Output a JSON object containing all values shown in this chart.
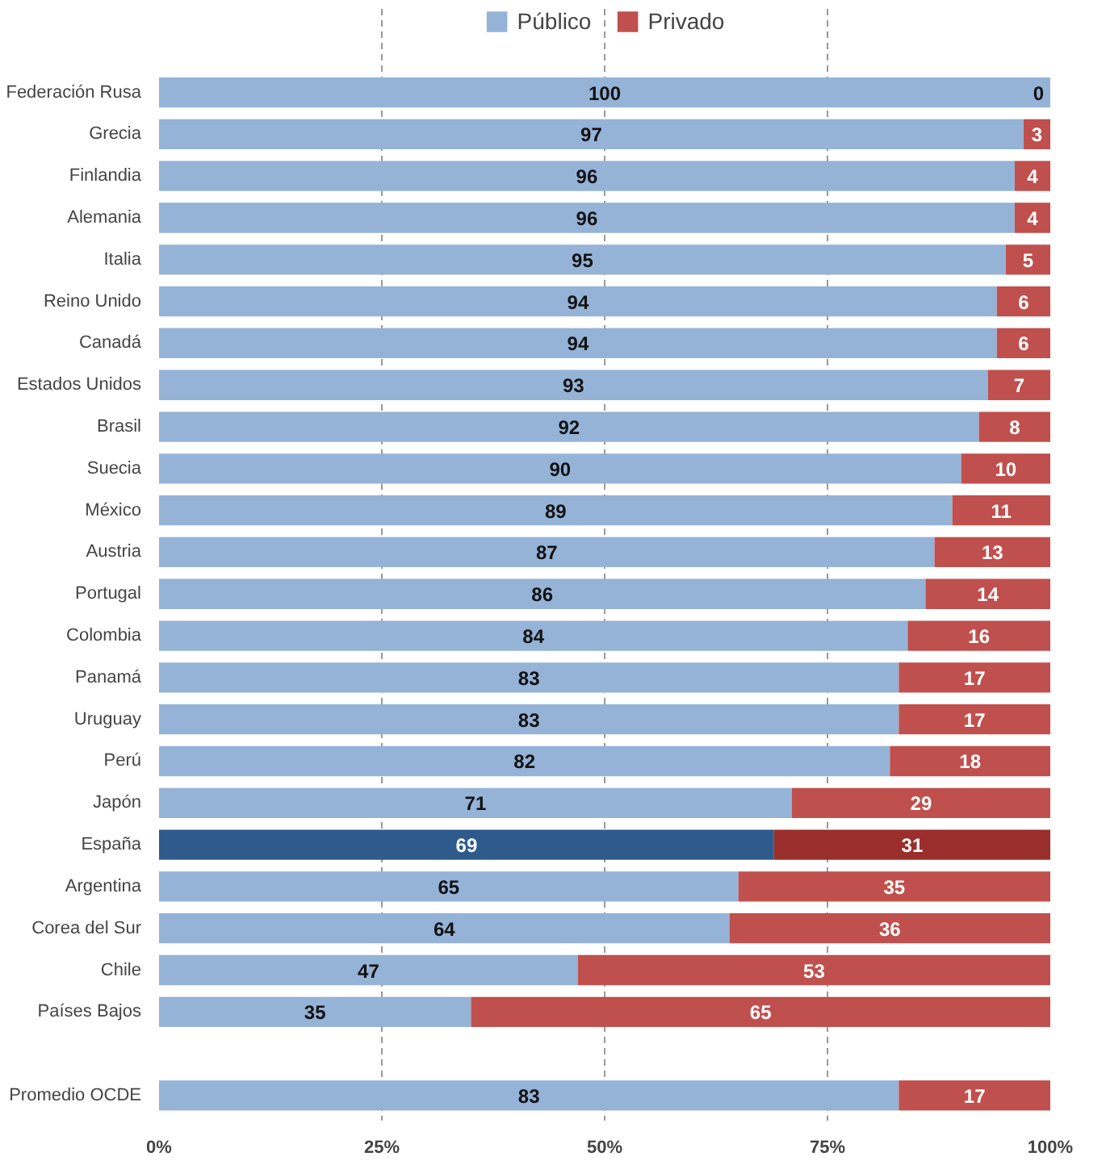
{
  "chart_data": {
    "type": "bar",
    "orientation": "horizontal",
    "stacked": true,
    "categories": [
      "Federación Rusa",
      "Grecia",
      "Finlandia",
      "Alemania",
      "Italia",
      "Reino Unido",
      "Canadá",
      "Estados Unidos",
      "Brasil",
      "Suecia",
      "México",
      "Austria",
      "Portugal",
      "Colombia",
      "Panamá",
      "Uruguay",
      "Perú",
      "Japón",
      "España",
      "Argentina",
      "Corea del Sur",
      "Chile",
      "Países Bajos",
      null,
      "Promedio OCDE"
    ],
    "series": [
      {
        "name": "Público",
        "color": "#95b3d7",
        "colors": [
          null,
          null,
          null,
          null,
          null,
          null,
          null,
          null,
          null,
          null,
          null,
          null,
          null,
          null,
          null,
          null,
          null,
          null,
          "#2f5b8c",
          null,
          null,
          null,
          null,
          null,
          null
        ],
        "values": [
          100,
          97,
          96,
          96,
          95,
          94,
          94,
          93,
          92,
          90,
          89,
          87,
          86,
          84,
          83,
          83,
          82,
          71,
          69,
          65,
          64,
          47,
          35,
          null,
          83
        ]
      },
      {
        "name": "Privado",
        "color": "#c0504d",
        "colors": [
          null,
          null,
          null,
          null,
          null,
          null,
          null,
          null,
          null,
          null,
          null,
          null,
          null,
          null,
          null,
          null,
          null,
          null,
          "#9a2e2b",
          null,
          null,
          null,
          null,
          null,
          null
        ],
        "values": [
          0,
          3,
          4,
          4,
          5,
          6,
          6,
          7,
          8,
          10,
          11,
          13,
          14,
          16,
          17,
          17,
          18,
          29,
          31,
          35,
          36,
          53,
          65,
          null,
          17
        ]
      }
    ],
    "xlim": [
      0,
      100
    ],
    "xticks": [
      {
        "value": 0,
        "label": "0%"
      },
      {
        "value": 25,
        "label": "25%"
      },
      {
        "value": 50,
        "label": "50%"
      },
      {
        "value": 75,
        "label": "75%"
      },
      {
        "value": 100,
        "label": "100%"
      }
    ],
    "grid": "x",
    "legend": "top",
    "data_labels": true
  }
}
